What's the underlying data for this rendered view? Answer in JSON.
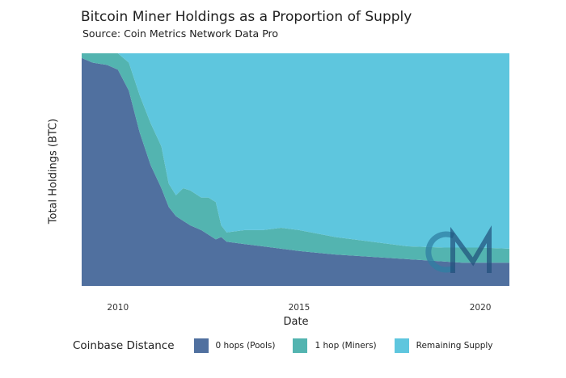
{
  "chart_data": {
    "type": "area",
    "stacked": true,
    "normalized": true,
    "title": "Bitcoin Miner Holdings as a Proportion of Supply",
    "subtitle": "Source: Coin Metrics Network Data Pro",
    "xlabel": "Date",
    "ylabel": "Total Holdings (BTC)",
    "xlim": [
      2009.0,
      2020.8
    ],
    "ylim": [
      0,
      1
    ],
    "x_ticks": [
      2010,
      2015,
      2020
    ],
    "grid": false,
    "legend": {
      "title": "Coinbase Distance",
      "placement": "bottom"
    },
    "x": [
      2009.0,
      2009.3,
      2009.7,
      2010.0,
      2010.3,
      2010.6,
      2010.9,
      2011.2,
      2011.4,
      2011.6,
      2011.8,
      2012.0,
      2012.3,
      2012.5,
      2012.7,
      2012.85,
      2013.0,
      2013.5,
      2014.0,
      2014.5,
      2015.0,
      2016.0,
      2017.0,
      2018.0,
      2019.0,
      2019.5,
      2020.0,
      2020.8
    ],
    "series": [
      {
        "name": "0 hops (Pools)",
        "color": "#50709f",
        "values": [
          0.98,
          0.96,
          0.95,
          0.93,
          0.84,
          0.66,
          0.52,
          0.42,
          0.34,
          0.3,
          0.28,
          0.26,
          0.24,
          0.22,
          0.2,
          0.21,
          0.19,
          0.18,
          0.17,
          0.16,
          0.15,
          0.135,
          0.125,
          0.115,
          0.105,
          0.1,
          0.1,
          0.1
        ]
      },
      {
        "name": "1 hop (Miners)",
        "color": "#53b4b0",
        "values": [
          0.02,
          0.04,
          0.05,
          0.07,
          0.12,
          0.16,
          0.18,
          0.18,
          0.1,
          0.09,
          0.14,
          0.15,
          0.14,
          0.16,
          0.16,
          0.05,
          0.04,
          0.06,
          0.07,
          0.09,
          0.09,
          0.075,
          0.065,
          0.055,
          0.06,
          0.065,
          0.065,
          0.06
        ]
      },
      {
        "name": "Remaining Supply",
        "color": "#5ec6de",
        "values": [
          0.0,
          0.0,
          0.0,
          0.0,
          0.04,
          0.18,
          0.3,
          0.4,
          0.56,
          0.61,
          0.58,
          0.59,
          0.62,
          0.62,
          0.64,
          0.74,
          0.77,
          0.76,
          0.76,
          0.75,
          0.76,
          0.79,
          0.81,
          0.83,
          0.835,
          0.835,
          0.835,
          0.84
        ]
      }
    ],
    "watermark": "CM"
  }
}
